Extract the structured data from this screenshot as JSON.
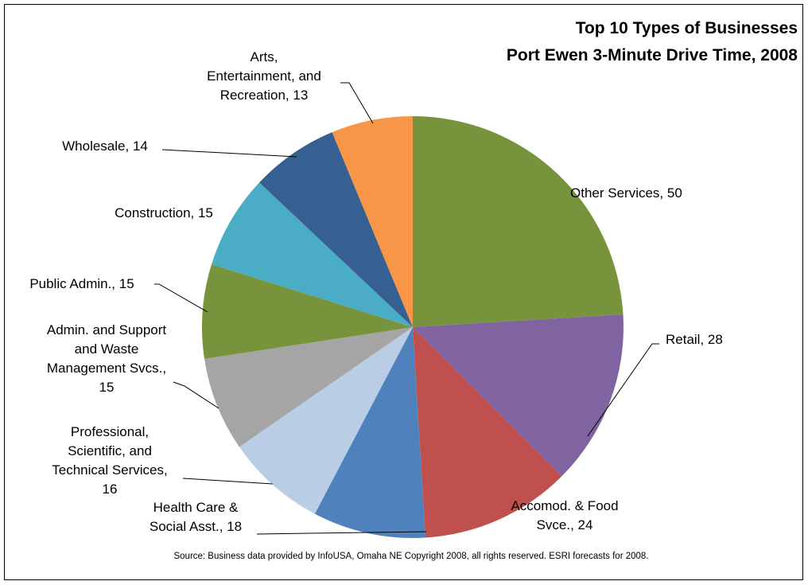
{
  "chart_data": {
    "type": "pie",
    "title": "Top 10 Types of Businesses",
    "subtitle": "Port Ewen 3-Minute Drive Time, 2008",
    "source": "Source:  Business data provided by InfoUSA, Omaha NE  Copyright 2008, all rights reserved.  ESRI forecasts for 2008.",
    "start_angle_deg": 0,
    "direction": "clockwise",
    "legend": "none",
    "slices": [
      {
        "label": "Other Services",
        "value": 50,
        "color": "#77933C",
        "label_lines": [
          "Other Services, 50"
        ]
      },
      {
        "label": "Retail",
        "value": 28,
        "color": "#8064A2",
        "label_lines": [
          "Retail, 28"
        ]
      },
      {
        "label": "Accomod. & Food Svce.",
        "value": 24,
        "color": "#C0504D",
        "label_lines": [
          "Accomod. & Food",
          "Svce., 24"
        ]
      },
      {
        "label": "Health Care & Social Asst.",
        "value": 18,
        "color": "#4F81BD",
        "label_lines": [
          "Health Care &",
          "Social Asst., 18"
        ]
      },
      {
        "label": "Professional, Scientific, and Technical Services",
        "value": 16,
        "color": "#B9CDE5",
        "label_lines": [
          "Professional,",
          "Scientific, and",
          "Technical Services,",
          "16"
        ]
      },
      {
        "label": "Admin. and Support and Waste Management Svcs.",
        "value": 15,
        "color": "#A5A5A5",
        "label_lines": [
          "Admin. and Support",
          "and Waste",
          "Management Svcs.,",
          "15"
        ]
      },
      {
        "label": "Public Admin.",
        "value": 15,
        "color": "#77933C",
        "label_lines": [
          "Public Admin., 15"
        ]
      },
      {
        "label": "Construction",
        "value": 15,
        "color": "#4BACC6",
        "label_lines": [
          "Construction, 15"
        ]
      },
      {
        "label": "Wholesale",
        "value": 14,
        "color": "#376092",
        "label_lines": [
          "Wholesale, 14"
        ]
      },
      {
        "label": "Arts, Entertainment, and Recreation",
        "value": 13,
        "color": "#F79646",
        "label_lines": [
          "Arts,",
          "Entertainment, and",
          "Recreation, 13"
        ]
      }
    ]
  }
}
